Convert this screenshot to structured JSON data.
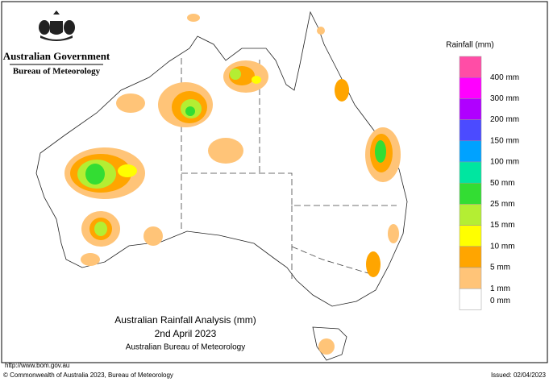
{
  "header": {
    "government": "Australian Government",
    "bureau": "Bureau of Meteorology"
  },
  "legend": {
    "title": "Rainfall (mm)",
    "items": [
      {
        "label": "400 mm",
        "color": "#ff4da6"
      },
      {
        "label": "300 mm",
        "color": "#ff00ff"
      },
      {
        "label": "200 mm",
        "color": "#b000ff"
      },
      {
        "label": "150 mm",
        "color": "#4b4bff"
      },
      {
        "label": "100 mm",
        "color": "#00a2ff"
      },
      {
        "label": "50 mm",
        "color": "#00e6a0"
      },
      {
        "label": "25 mm",
        "color": "#33dd33"
      },
      {
        "label": "15 mm",
        "color": "#b4ee33"
      },
      {
        "label": "10 mm",
        "color": "#ffff00"
      },
      {
        "label": "5 mm",
        "color": "#ffa500"
      },
      {
        "label": "1 mm",
        "color": "#ffc478"
      },
      {
        "label": "0 mm",
        "color": "#ffffff"
      }
    ]
  },
  "caption": {
    "line1": "Australian Rainfall Analysis (mm)",
    "line2": "2nd April 2023",
    "line3": "Australian Bureau of Meteorology"
  },
  "footer": {
    "url": "http://www.bom.gov.au",
    "copyright": "© Commonwealth of Australia 2023, Bureau of Meteorology",
    "issued": "Issued: 02/04/2023"
  }
}
